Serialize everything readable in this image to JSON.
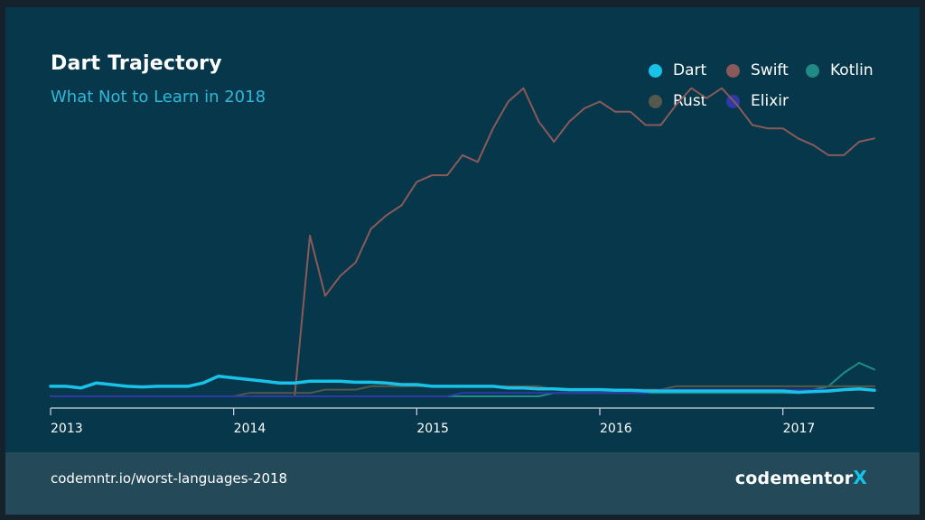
{
  "title": "Dart Trajectory",
  "subtitle": "What Not to Learn in 2018",
  "footer": {
    "url": "codemntr.io/worst-languages-2018",
    "brand": "codementor",
    "brand_x": "X"
  },
  "colors": {
    "background": "#06374a",
    "footer": "#244a5a",
    "axis": "#cfd8dc"
  },
  "chart_data": {
    "type": "line",
    "title": "Dart Trajectory",
    "subtitle": "What Not to Learn in 2018",
    "xlabel": "",
    "ylabel": "",
    "x_ticks": [
      "2013",
      "2014",
      "2015",
      "2016",
      "2017"
    ],
    "x_tick_values": [
      2013,
      2014,
      2015,
      2016,
      2017
    ],
    "xlim": [
      2013.0,
      2017.5
    ],
    "ylim": [
      0,
      100
    ],
    "grid": false,
    "legend_position": "top-right",
    "x": [
      2013.0,
      2013.0833,
      2013.1667,
      2013.25,
      2013.3333,
      2013.4167,
      2013.5,
      2013.5833,
      2013.6667,
      2013.75,
      2013.8333,
      2013.9167,
      2014.0,
      2014.0833,
      2014.1667,
      2014.25,
      2014.3333,
      2014.4167,
      2014.5,
      2014.5833,
      2014.6667,
      2014.75,
      2014.8333,
      2014.9167,
      2015.0,
      2015.0833,
      2015.1667,
      2015.25,
      2015.3333,
      2015.4167,
      2015.5,
      2015.5833,
      2015.6667,
      2015.75,
      2015.8333,
      2015.9167,
      2016.0,
      2016.0833,
      2016.1667,
      2016.25,
      2016.3333,
      2016.4167,
      2016.5,
      2016.5833,
      2016.6667,
      2016.75,
      2016.8333,
      2016.9167,
      2017.0,
      2017.0833,
      2017.1667,
      2017.25,
      2017.3333,
      2017.4167,
      2017.5
    ],
    "series": [
      {
        "name": "Swift",
        "color": "#8a5a5a",
        "width": 2,
        "values": [
          0,
          0,
          0,
          0,
          0,
          0,
          0,
          0,
          0,
          0,
          0,
          0,
          0,
          0,
          0,
          0,
          0,
          48,
          30,
          36,
          40,
          50,
          54,
          57,
          64,
          66,
          66,
          72,
          70,
          80,
          88,
          92,
          82,
          76,
          82,
          86,
          88,
          85,
          85,
          81,
          81,
          87,
          92,
          89,
          92,
          87,
          81,
          80,
          80,
          77,
          75,
          72,
          72,
          76,
          77
        ]
      },
      {
        "name": "Kotlin",
        "color": "#1f8a86",
        "width": 2,
        "values": [
          0,
          0,
          0,
          0,
          0,
          0,
          0,
          0,
          0,
          0,
          0,
          0,
          0,
          0,
          0,
          0,
          0,
          0,
          0,
          0,
          0,
          0,
          0,
          0,
          0,
          0,
          0,
          0,
          0,
          0,
          0,
          0,
          0,
          1,
          1,
          1,
          1,
          1,
          1,
          1,
          1,
          1,
          1,
          1,
          1,
          1,
          1,
          1,
          1,
          1,
          2,
          3,
          7,
          10,
          8
        ]
      },
      {
        "name": "Rust",
        "color": "#55584a",
        "width": 2,
        "values": [
          0,
          0,
          0,
          0,
          0,
          0,
          0,
          0,
          0,
          0,
          0,
          0,
          0,
          1,
          1,
          1,
          1,
          1,
          2,
          2,
          2,
          3,
          3,
          3,
          3,
          3,
          3,
          3,
          3,
          3,
          3,
          3,
          3,
          2,
          2,
          2,
          2,
          2,
          2,
          2,
          2,
          3,
          3,
          3,
          3,
          3,
          3,
          3,
          3,
          3,
          3,
          3,
          3,
          3,
          3
        ]
      },
      {
        "name": "Elixir",
        "color": "#2f3aa6",
        "width": 2,
        "values": [
          0,
          0,
          0,
          0,
          0,
          0,
          0,
          0,
          0,
          0,
          0,
          0,
          0,
          0,
          0,
          0,
          0,
          0,
          0,
          0,
          0,
          0,
          0,
          0,
          0,
          0,
          0,
          1,
          1,
          1,
          1,
          1,
          1,
          1,
          1,
          1,
          1,
          1,
          1,
          1,
          2,
          2,
          2,
          2,
          2,
          2,
          2,
          2,
          2,
          2,
          2,
          2,
          2,
          2,
          2
        ]
      },
      {
        "name": "Dart",
        "color": "#19c2e8",
        "width": 3.5,
        "values": [
          3,
          3,
          2.5,
          4,
          3.5,
          3,
          2.8,
          3,
          3,
          3,
          4,
          6,
          5.5,
          5,
          4.5,
          4,
          4,
          4.5,
          4.5,
          4.5,
          4.2,
          4.2,
          4,
          3.5,
          3.5,
          3,
          3,
          3,
          3,
          3,
          2.5,
          2.5,
          2.2,
          2.2,
          2,
          2,
          2,
          1.8,
          1.8,
          1.6,
          1.6,
          1.6,
          1.6,
          1.6,
          1.6,
          1.6,
          1.6,
          1.6,
          1.6,
          1.2,
          1.4,
          1.6,
          2,
          2.2,
          1.8
        ]
      }
    ]
  },
  "legend": [
    {
      "label": "Dart",
      "color": "#19c2e8"
    },
    {
      "label": "Swift",
      "color": "#8a5a5a"
    },
    {
      "label": "Kotlin",
      "color": "#1f8a86"
    },
    {
      "label": "Rust",
      "color": "#55584a"
    },
    {
      "label": "Elixir",
      "color": "#2f3aa6"
    }
  ]
}
